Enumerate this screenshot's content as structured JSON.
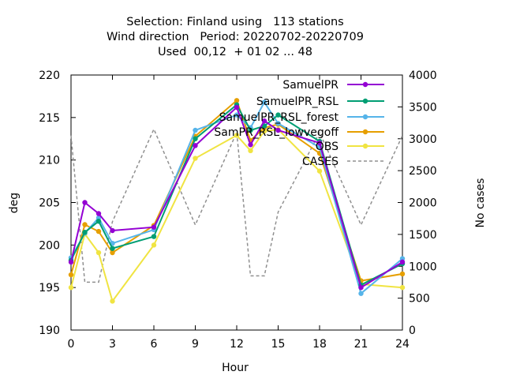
{
  "chart_data": {
    "type": "line",
    "title_lines": [
      "Selection: Finland using   113 stations",
      "Wind direction   Period: 20220702-20220709",
      "Used  00,12  + 01 02 ... 48"
    ],
    "xlabel": "Hour",
    "ylabel": "deg",
    "y2label": "No cases",
    "xlim": [
      0,
      24
    ],
    "ylim": [
      190,
      220
    ],
    "y2lim": [
      0,
      4000
    ],
    "x_ticks": [
      0,
      3,
      6,
      9,
      12,
      15,
      18,
      21,
      24
    ],
    "y_ticks": [
      190,
      195,
      200,
      205,
      210,
      215,
      220
    ],
    "y2_ticks": [
      0,
      500,
      1000,
      1500,
      2000,
      2500,
      3000,
      3500,
      4000
    ],
    "grid": false,
    "legend_position": "top-right",
    "x": [
      0,
      1,
      2,
      3,
      6,
      9,
      12,
      13,
      14,
      15,
      18,
      21,
      24
    ],
    "series": [
      {
        "name": "SamuelPR",
        "color": "#9400d3",
        "marker": "circle",
        "axis": "y",
        "values": [
          198.0,
          205.0,
          203.7,
          201.7,
          202.1,
          211.7,
          216.2,
          211.8,
          214.6,
          213.5,
          212.0,
          195.0,
          198.0
        ]
      },
      {
        "name": "SamuelPR_RSL",
        "color": "#009e73",
        "marker": "circle",
        "axis": "y",
        "values": [
          198.2,
          201.5,
          202.8,
          199.6,
          201.0,
          212.5,
          216.5,
          213.5,
          214.0,
          215.3,
          212.2,
          195.3,
          197.8
        ]
      },
      {
        "name": "SamuelPR_RSL_forest",
        "color": "#56b4e9",
        "marker": "circle",
        "axis": "y",
        "values": [
          198.5,
          201.4,
          203.2,
          200.2,
          201.8,
          213.5,
          215.3,
          213.8,
          216.8,
          214.3,
          211.5,
          194.3,
          198.4
        ]
      },
      {
        "name": "SamPR_RSL_lowvegoff",
        "color": "#e69f00",
        "marker": "circle",
        "axis": "y",
        "values": [
          196.5,
          202.4,
          201.6,
          199.1,
          202.3,
          212.8,
          217.0,
          212.3,
          213.8,
          214.2,
          210.8,
          195.8,
          196.6
        ]
      },
      {
        "name": "OBS",
        "color": "#f0e442",
        "marker": "circle",
        "axis": "y",
        "values": [
          195.0,
          201.3,
          199.1,
          193.4,
          200.0,
          210.2,
          212.9,
          211.1,
          213.4,
          213.6,
          208.7,
          195.4,
          195.0
        ]
      },
      {
        "name": "CASES",
        "color": "#909090",
        "marker": "none",
        "dash": true,
        "axis": "y2",
        "values": [
          3050,
          750,
          750,
          1700,
          3150,
          1650,
          3100,
          850,
          850,
          1850,
          3100,
          1650,
          3050
        ]
      }
    ]
  },
  "legend": {
    "labels": [
      "SamuelPR",
      "SamuelPR_RSL",
      "SamuelPR_RSL_forest",
      "SamPR_RSL_lowvegoff",
      "OBS",
      "CASES"
    ]
  }
}
